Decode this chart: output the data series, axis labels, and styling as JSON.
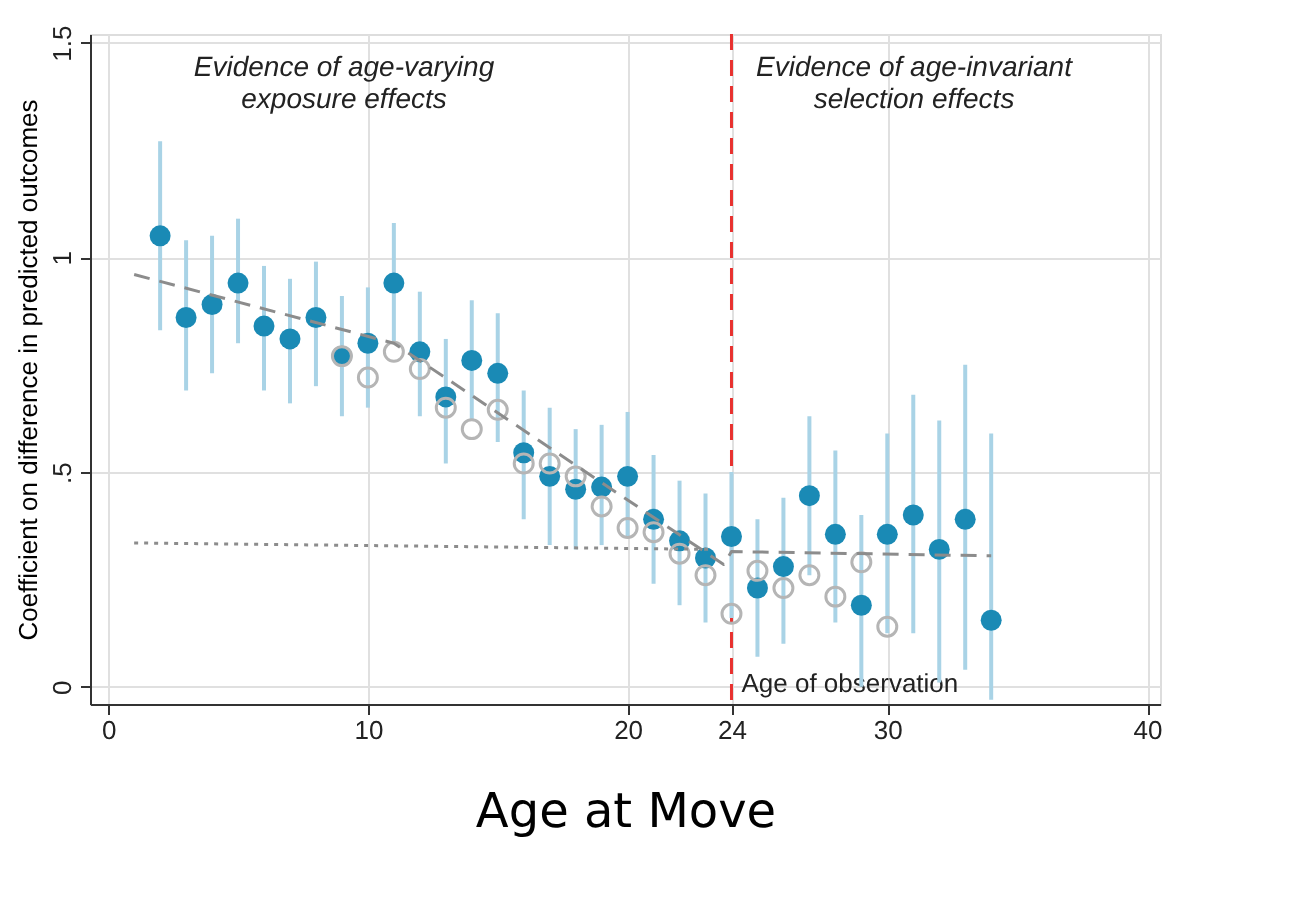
{
  "chart_data": {
    "type": "scatter",
    "xlabel": "Age at Move",
    "ylabel": "Coefficient on difference in predicted outcomes",
    "xlim": [
      -0.7,
      40.5
    ],
    "xticks": [
      0,
      10,
      20,
      24,
      30,
      40
    ],
    "ylim": [
      -0.04,
      1.52
    ],
    "yticks": [
      0,
      {
        "value": 0.5,
        "label": ".5"
      },
      1,
      1.5
    ],
    "grid": true,
    "marker": "circle",
    "annotations": [
      "Evidence of age-varying\nexposure effects",
      "Evidence of age-invariant\nselection effects"
    ],
    "ref_lines": [
      {
        "axis": "x",
        "value": 24,
        "label": "Age of observation",
        "color": "#e8312f",
        "line_style": "dashed"
      }
    ],
    "series": [
      {
        "type": "scatter",
        "color": "#1a8ab5",
        "x": [
          2,
          3,
          4,
          5,
          6,
          7,
          8,
          9,
          10,
          11,
          12,
          13,
          14,
          15,
          16,
          17,
          18,
          19,
          20,
          21,
          22,
          23,
          24,
          25,
          26,
          27,
          28,
          29,
          30,
          31,
          32,
          33,
          34
        ],
        "values": [
          1.05,
          0.86,
          0.89,
          0.94,
          0.84,
          0.81,
          0.86,
          0.77,
          0.8,
          0.94,
          0.78,
          0.675,
          0.76,
          0.73,
          0.545,
          0.49,
          0.46,
          0.465,
          0.49,
          0.39,
          0.34,
          0.3,
          0.35,
          0.23,
          0.28,
          0.445,
          0.355,
          0.19,
          0.355,
          0.4,
          0.32,
          0.39,
          0.155
        ],
        "errors": [
          [
            0.83,
            1.27
          ],
          [
            0.69,
            1.04
          ],
          [
            0.73,
            1.05
          ],
          [
            0.8,
            1.09
          ],
          [
            0.69,
            0.98
          ],
          [
            0.66,
            0.95
          ],
          [
            0.7,
            0.99
          ],
          [
            0.63,
            0.91
          ],
          [
            0.65,
            0.93
          ],
          [
            0.8,
            1.08
          ],
          [
            0.63,
            0.92
          ],
          [
            0.52,
            0.81
          ],
          [
            0.62,
            0.9
          ],
          [
            0.57,
            0.87
          ],
          [
            0.39,
            0.69
          ],
          [
            0.33,
            0.65
          ],
          [
            0.32,
            0.6
          ],
          [
            0.33,
            0.61
          ],
          [
            0.35,
            0.64
          ],
          [
            0.24,
            0.54
          ],
          [
            0.19,
            0.48
          ],
          [
            0.15,
            0.45
          ],
          [
            0.16,
            0.5
          ],
          [
            0.07,
            0.39
          ],
          [
            0.1,
            0.44
          ],
          [
            0.26,
            0.63
          ],
          [
            0.15,
            0.55
          ],
          [
            0.0,
            0.4
          ],
          [
            0.125,
            0.59
          ],
          [
            0.125,
            0.68
          ],
          [
            0.01,
            0.62
          ],
          [
            0.04,
            0.75
          ],
          [
            -0.03,
            0.59
          ]
        ]
      },
      {
        "type": "scatter",
        "color": "#b5b5b5",
        "x": [
          9,
          10,
          11,
          12,
          13,
          14,
          15,
          16,
          17,
          18,
          19,
          20,
          21,
          22,
          23,
          24,
          25,
          26,
          27,
          28,
          29,
          30
        ],
        "values": [
          0.77,
          0.72,
          0.78,
          0.74,
          0.65,
          0.6,
          0.645,
          0.52,
          0.52,
          0.49,
          0.42,
          0.37,
          0.36,
          0.31,
          0.26,
          0.17,
          0.27,
          0.23,
          0.26,
          0.21,
          0.29,
          0.14
        ]
      },
      {
        "type": "line",
        "color": "#8c8c8c",
        "line_style": "dashed",
        "marker": "none",
        "x": [
          1,
          11,
          23.7,
          24,
          34
        ],
        "values": [
          0.96,
          0.8,
          0.285,
          0.315,
          0.305
        ]
      },
      {
        "type": "line",
        "color": "#8c8c8c",
        "line_style": "dotted",
        "marker": "none",
        "x": [
          1,
          23.3
        ],
        "values": [
          0.335,
          0.32
        ]
      }
    ]
  }
}
